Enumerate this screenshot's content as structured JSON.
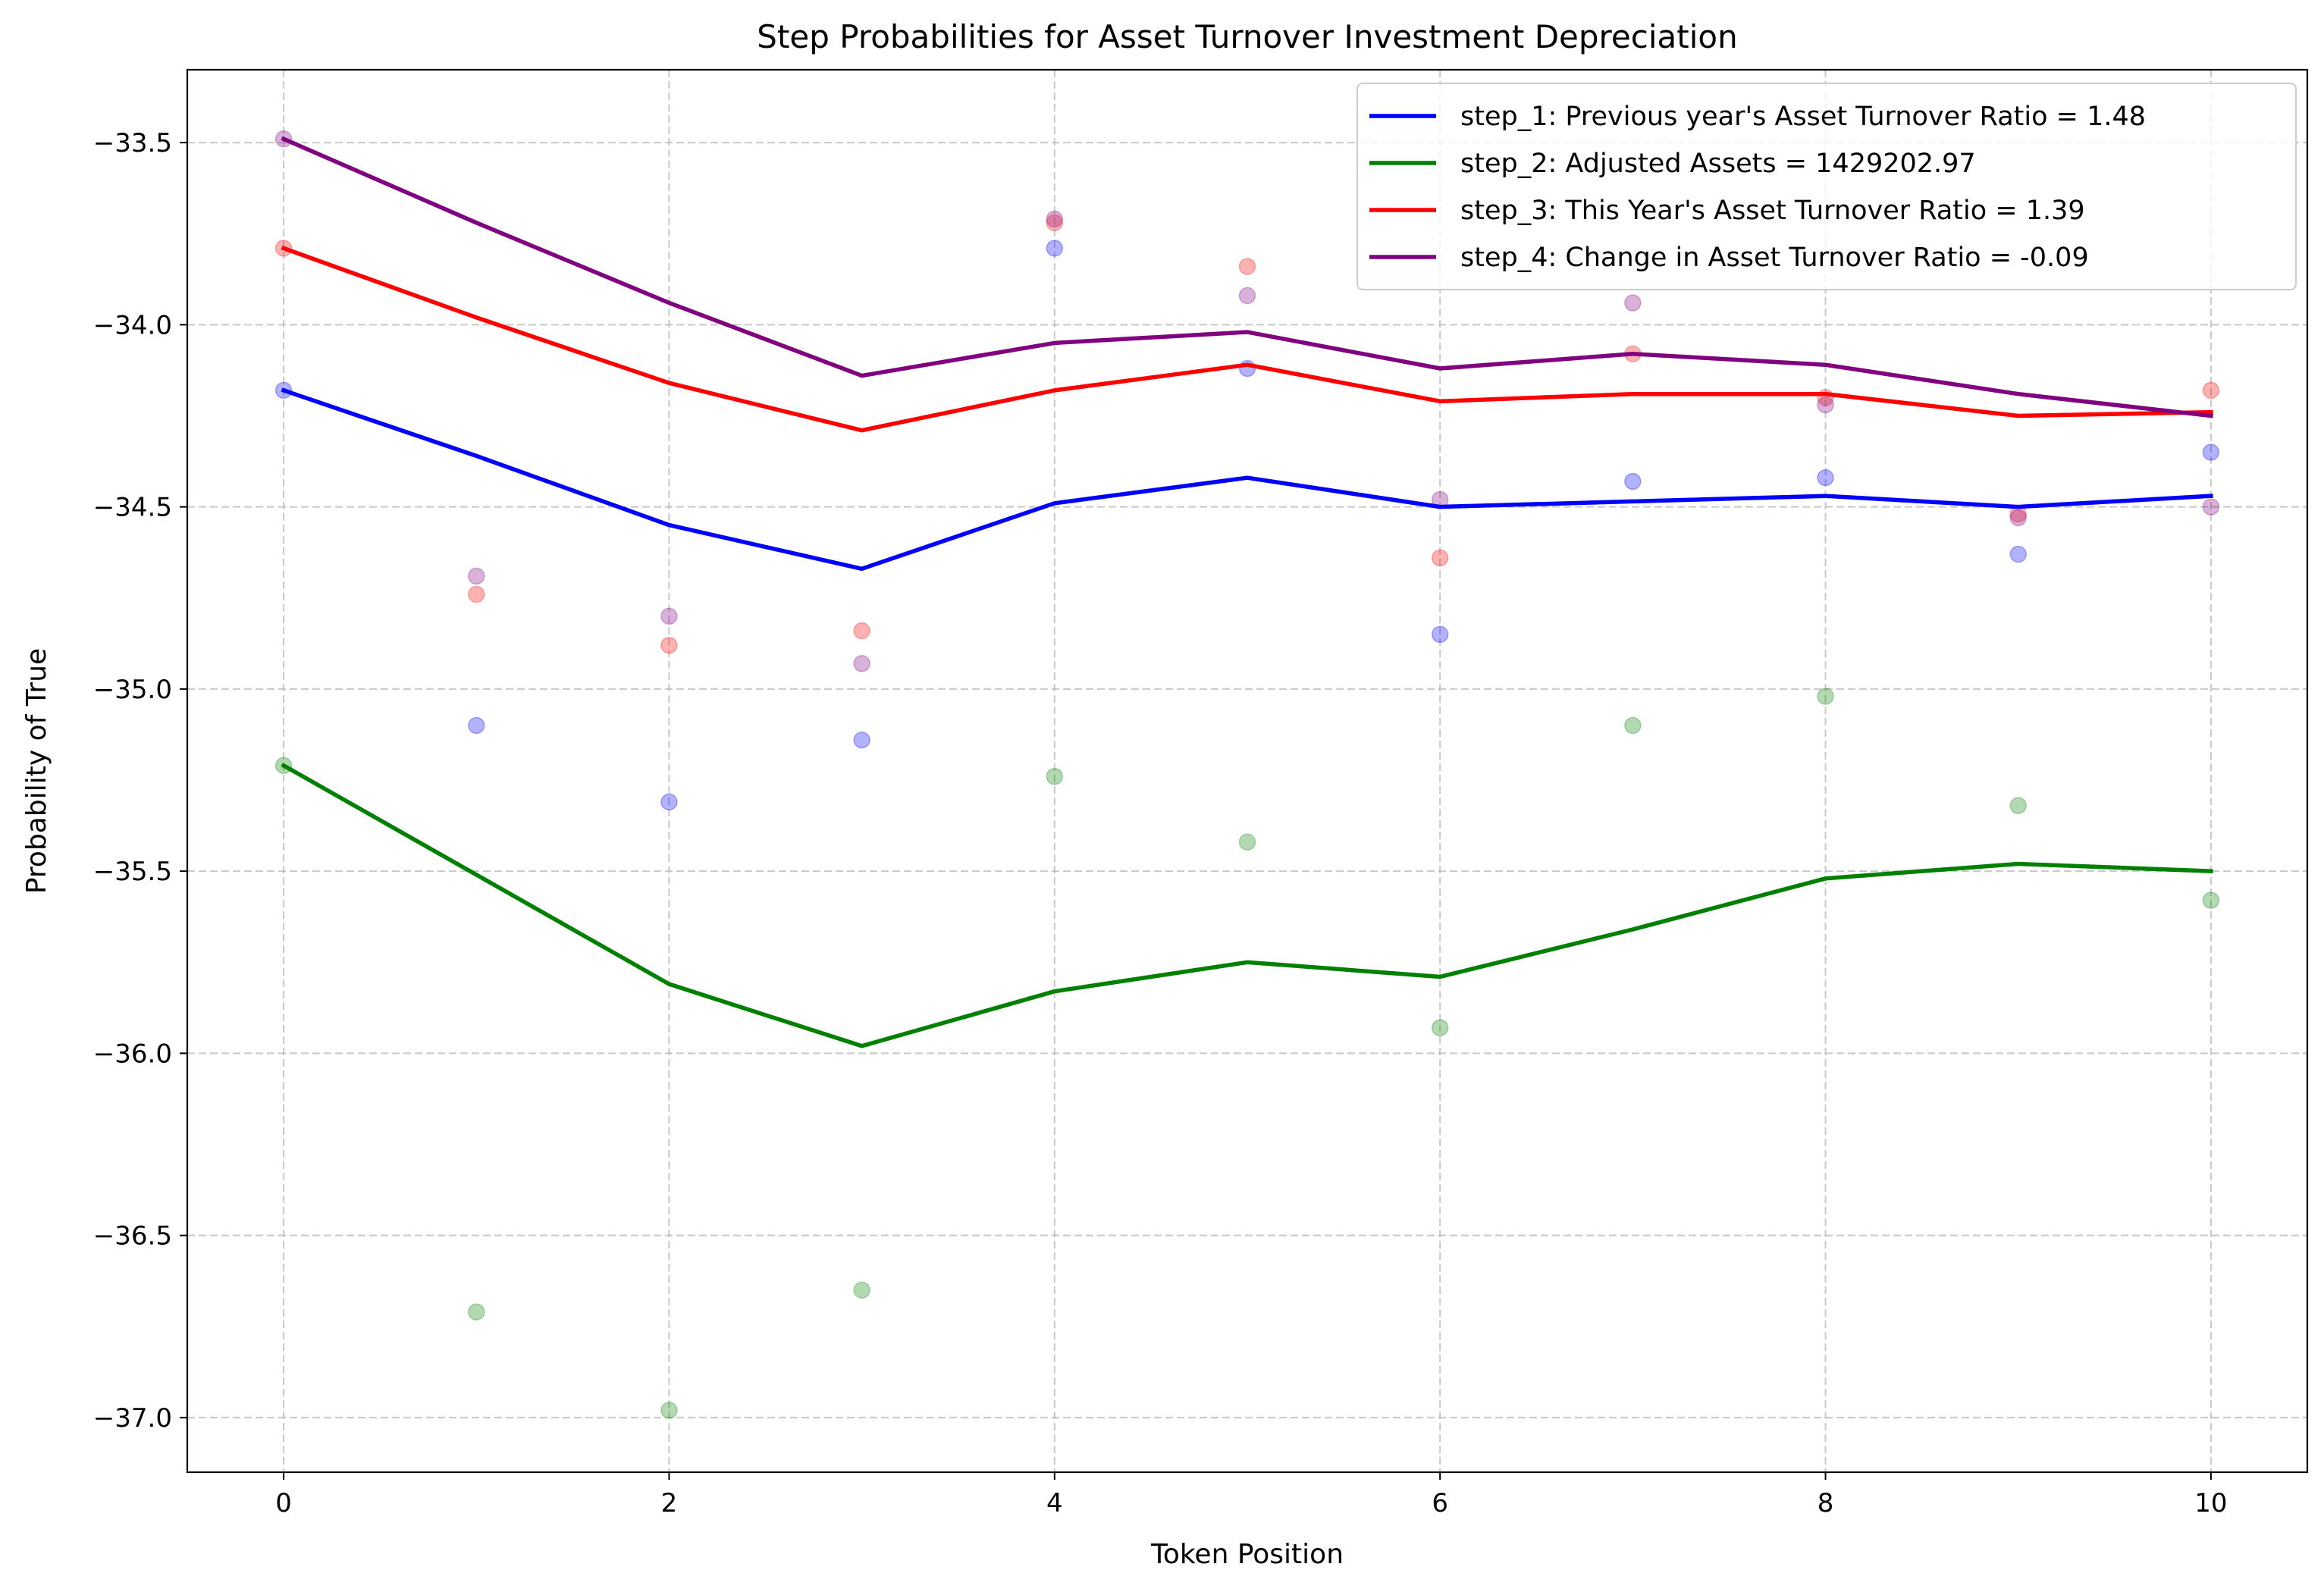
{
  "chart_data": {
    "type": "line",
    "title": "Step Probabilities for Asset Turnover Investment Depreciation",
    "xlabel": "Token Position",
    "ylabel": "Probability of True",
    "xlim": [
      -0.5,
      10.5
    ],
    "ylim": [
      -37.15,
      -33.3
    ],
    "xticks": [
      0,
      2,
      4,
      6,
      8,
      10
    ],
    "yticks": [
      -33.5,
      -34.0,
      -34.5,
      -35.0,
      -35.5,
      -36.0,
      -36.5,
      -37.0
    ],
    "ytick_labels": [
      "−33.5",
      "−34.0",
      "−34.5",
      "−35.0",
      "−35.5",
      "−36.0",
      "−36.5",
      "−37.0"
    ],
    "grid": true,
    "legend_position": "top-right",
    "x": [
      0,
      1,
      2,
      3,
      4,
      5,
      6,
      7,
      8,
      9,
      10
    ],
    "series": [
      {
        "name": "step_1: Previous year's Asset Turnover Ratio = 1.48",
        "color": "#0000ff",
        "line": [
          -34.18,
          -34.36,
          -34.55,
          -34.67,
          -34.49,
          -34.42,
          -34.5,
          -34.485,
          -34.47,
          -34.5,
          -34.47
        ],
        "points": [
          -34.18,
          -35.1,
          -35.31,
          -35.14,
          -33.79,
          -34.12,
          -34.85,
          -34.43,
          -34.42,
          -34.63,
          -34.35
        ]
      },
      {
        "name": "step_2: Adjusted Assets = 1429202.97",
        "color": "#008000",
        "line": [
          -35.21,
          -35.51,
          -35.81,
          -35.98,
          -35.83,
          -35.75,
          -35.79,
          -35.66,
          -35.52,
          -35.48,
          -35.5
        ],
        "points": [
          -35.21,
          -36.71,
          -36.98,
          -36.65,
          -35.24,
          -35.42,
          -35.93,
          -35.1,
          -35.02,
          -35.32,
          -35.58
        ]
      },
      {
        "name": "step_3: This Year's Asset Turnover Ratio = 1.39",
        "color": "#ff0000",
        "line": [
          -33.79,
          -33.98,
          -34.16,
          -34.29,
          -34.18,
          -34.11,
          -34.21,
          -34.19,
          -34.19,
          -34.25,
          -34.24
        ],
        "points": [
          -33.79,
          -34.74,
          -34.88,
          -34.84,
          -33.72,
          -33.84,
          -34.64,
          -34.08,
          -34.2,
          -34.52,
          -34.18
        ]
      },
      {
        "name": "step_4: Change in Asset Turnover Ratio = -0.09",
        "color": "#800080",
        "line": [
          -33.49,
          -33.72,
          -33.94,
          -34.14,
          -34.05,
          -34.02,
          -34.12,
          -34.08,
          -34.11,
          -34.19,
          -34.25
        ],
        "points": [
          -33.49,
          -34.69,
          -34.8,
          -34.93,
          -33.71,
          -33.92,
          -34.48,
          -33.94,
          -34.22,
          -34.53,
          -34.5
        ]
      }
    ]
  }
}
